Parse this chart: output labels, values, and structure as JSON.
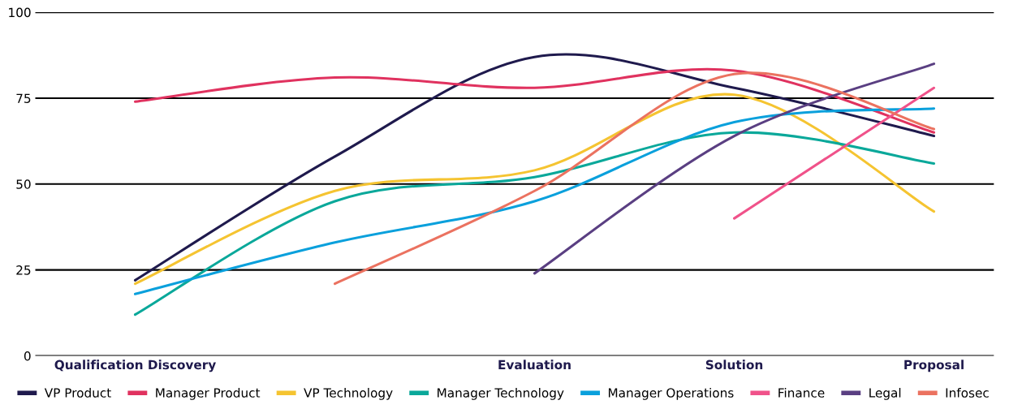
{
  "chart_data": {
    "type": "line",
    "categories": [
      "Qualification Discovery",
      null,
      "Evaluation",
      "Solution",
      "Proposal"
    ],
    "ylim": [
      0,
      100
    ],
    "yticks": [
      0,
      25,
      50,
      75,
      100
    ],
    "grid": "y",
    "legend": "bottom",
    "marker": "none",
    "line_style": "solid",
    "series": [
      {
        "name": "VP Product",
        "color": "#1f1a4d",
        "values": [
          22,
          58,
          87,
          78,
          64
        ]
      },
      {
        "name": "Manager Product",
        "color": "#e0325f",
        "values": [
          74,
          81,
          78,
          83,
          65
        ]
      },
      {
        "name": "VP Technology",
        "color": "#f5c431",
        "values": [
          21,
          48,
          54,
          76,
          42
        ]
      },
      {
        "name": "Manager Technology",
        "color": "#0aa89a",
        "values": [
          12,
          45,
          52,
          65,
          56
        ]
      },
      {
        "name": "Manager Operations",
        "color": "#0aa0dc",
        "values": [
          18,
          33,
          45,
          68,
          72
        ]
      },
      {
        "name": "Finance",
        "color": "#f0528a",
        "values": [
          null,
          null,
          null,
          40,
          78
        ]
      },
      {
        "name": "Legal",
        "color": "#5a3f82",
        "values": [
          null,
          null,
          24,
          64,
          85
        ]
      },
      {
        "name": "Infosec",
        "color": "#eb7260",
        "values": [
          null,
          21,
          48,
          82,
          66
        ]
      }
    ]
  }
}
